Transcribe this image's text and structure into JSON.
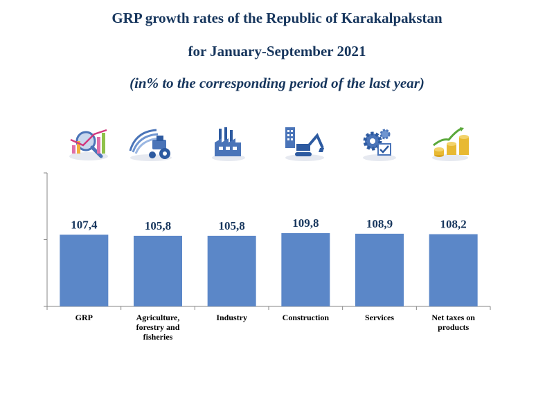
{
  "chart_data": {
    "type": "bar",
    "title": "GRP growth rates of the Republic of Karakalpakstan",
    "subtitle": "for January-September 2021",
    "note": "(in% to the corresponding period of the last year)",
    "categories": [
      [
        "GRP"
      ],
      [
        "Agriculture,",
        "forestry and",
        "fisheries"
      ],
      [
        "Industry"
      ],
      [
        "Construction"
      ],
      [
        "Services"
      ],
      [
        "Net taxes on",
        "products"
      ]
    ],
    "values": [
      107.4,
      105.8,
      105.8,
      109.8,
      108.9,
      108.2
    ],
    "value_labels": [
      "107,4",
      "105,8",
      "105,8",
      "109,8",
      "108,9",
      "108,2"
    ],
    "ylim": [
      0,
      200
    ],
    "bar_color": "#5b87c8",
    "axis_color": "#868686"
  },
  "icons": [
    "chart-icon",
    "tractor-icon",
    "factory-icon",
    "excavator-icon",
    "gears-icon",
    "coins-icon"
  ]
}
